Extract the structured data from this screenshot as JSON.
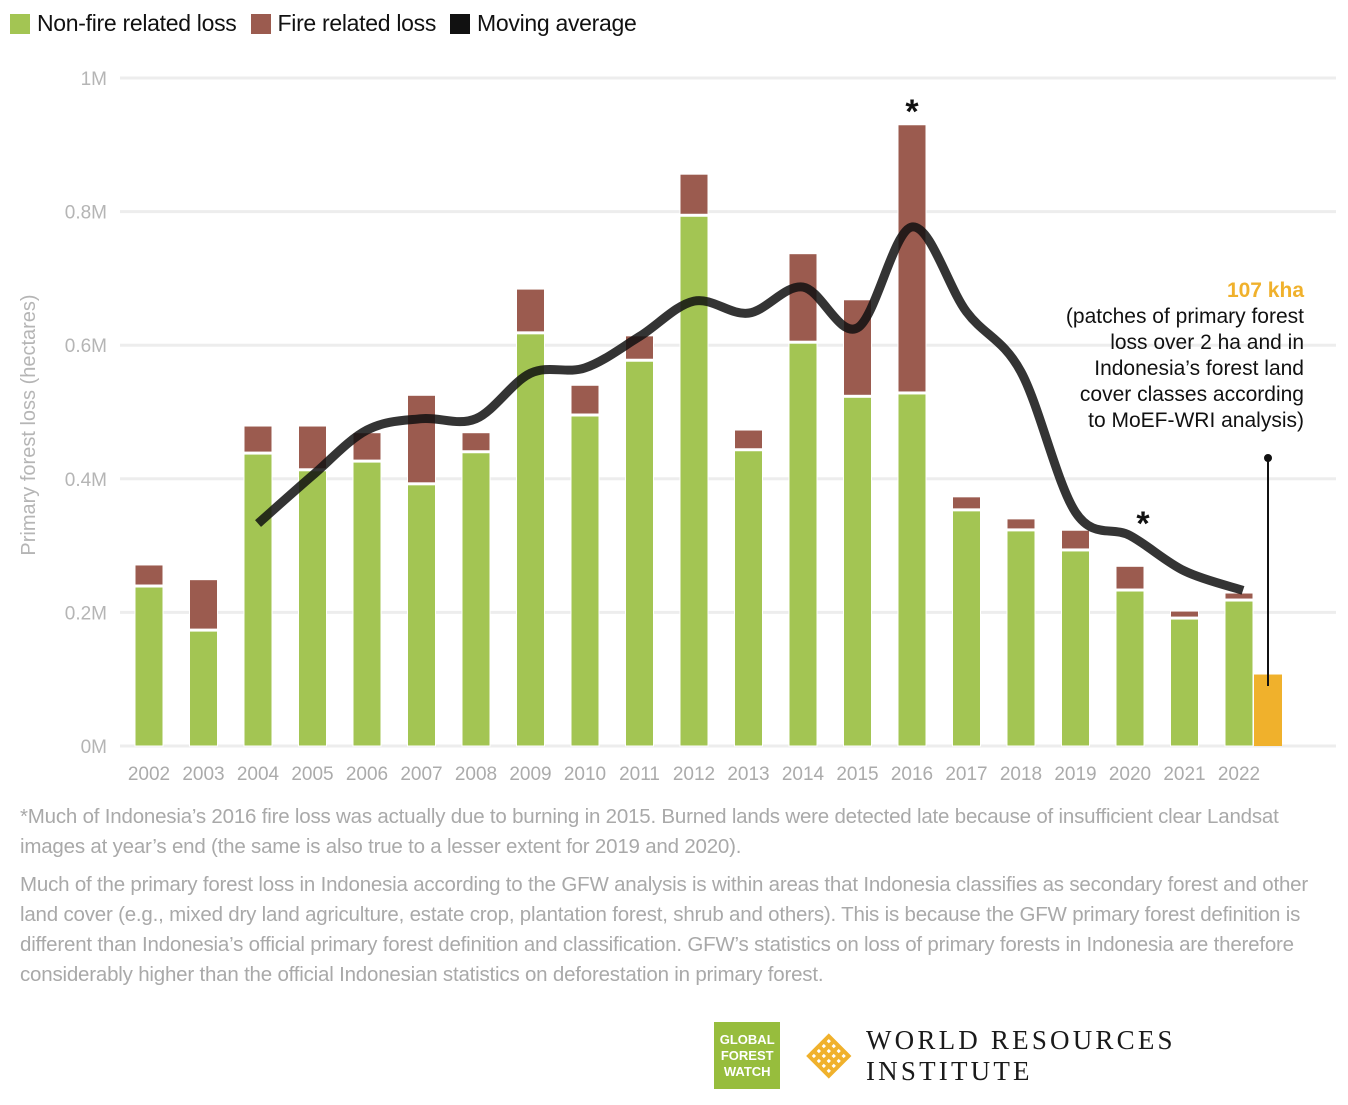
{
  "legend": [
    {
      "label": "Non-fire related loss",
      "color": "#a3c553"
    },
    {
      "label": "Fire related loss",
      "color": "#9b5b4f"
    },
    {
      "label": "Moving average",
      "color": "#111111"
    }
  ],
  "annotation": {
    "highlight": "107 kha",
    "highlight_color": "#f0b12c",
    "lines": [
      "(patches of primary forest",
      "loss over 2 ha and in",
      "Indonesia’s forest land",
      "cover classes according",
      "to MoEF-WRI analysis)"
    ]
  },
  "notes": [
    "*Much of Indonesia’s 2016 fire loss was actually due to burning in 2015. Burned lands were detected late because of insufficient clear Landsat images at year’s end (the same is also true to a lesser extent for 2019 and 2020).",
    "Much of the primary forest loss in Indonesia according to the GFW analysis is within areas that Indonesia classifies as secondary forest and other land cover (e.g., mixed dry land agriculture, estate crop, plantation forest, shrub and others). This is because the GFW primary forest definition is different than Indonesia’s official primary forest definition and classification. GFW’s statistics on loss of primary forests in Indonesia are therefore considerably higher than the official Indonesian statistics on deforestation in primary forest."
  ],
  "logos": {
    "gfw": [
      "GLOBAL",
      "FOREST",
      "WATCH"
    ],
    "wri": "WORLD RESOURCES INSTITUTE",
    "gfw_color": "#97bd3d",
    "wri_color": "#f0b12c"
  },
  "chart_data": {
    "type": "bar",
    "stacked": true,
    "title": "",
    "xlabel": "",
    "ylabel": "Primary forest loss (hectares)",
    "ylim": [
      0,
      1000000
    ],
    "yticks": [
      0,
      200000,
      400000,
      600000,
      800000,
      1000000
    ],
    "ytick_labels": [
      "0M",
      "0.2M",
      "0.4M",
      "0.6M",
      "0.8M",
      "1M"
    ],
    "grid": true,
    "legend_position": "top-left",
    "categories": [
      "2002",
      "2003",
      "2004",
      "2005",
      "2006",
      "2007",
      "2008",
      "2009",
      "2010",
      "2011",
      "2012",
      "2013",
      "2014",
      "2015",
      "2016",
      "2017",
      "2018",
      "2019",
      "2020",
      "2021",
      "2022"
    ],
    "series": [
      {
        "name": "Non-fire related loss",
        "color": "#a3c553",
        "values": [
          238000,
          172000,
          437000,
          412000,
          425000,
          391000,
          439000,
          617000,
          494000,
          576000,
          793000,
          442000,
          603000,
          522000,
          527000,
          352000,
          322000,
          292000,
          232000,
          190000,
          217000
        ]
      },
      {
        "name": "Fire related loss",
        "color": "#9b5b4f",
        "values": [
          33000,
          77000,
          42000,
          67000,
          44000,
          134000,
          30000,
          67000,
          46000,
          38000,
          63000,
          31000,
          134000,
          146000,
          403000,
          21000,
          18000,
          31000,
          37000,
          12000,
          12000
        ]
      },
      {
        "name": "Moving average",
        "type": "line",
        "color": "#111111",
        "values": [
          null,
          null,
          333000,
          405000,
          473000,
          490000,
          490000,
          558000,
          566000,
          613000,
          666000,
          648000,
          687000,
          626000,
          777000,
          650000,
          560000,
          350000,
          315000,
          262000,
          233000
        ]
      }
    ],
    "extra_bar": {
      "category": "2022",
      "name": "MoEF-WRI analysis",
      "value": 107000,
      "color": "#f0b12c",
      "label": "107 kha"
    },
    "asterisks": [
      "2016",
      "2020"
    ]
  }
}
